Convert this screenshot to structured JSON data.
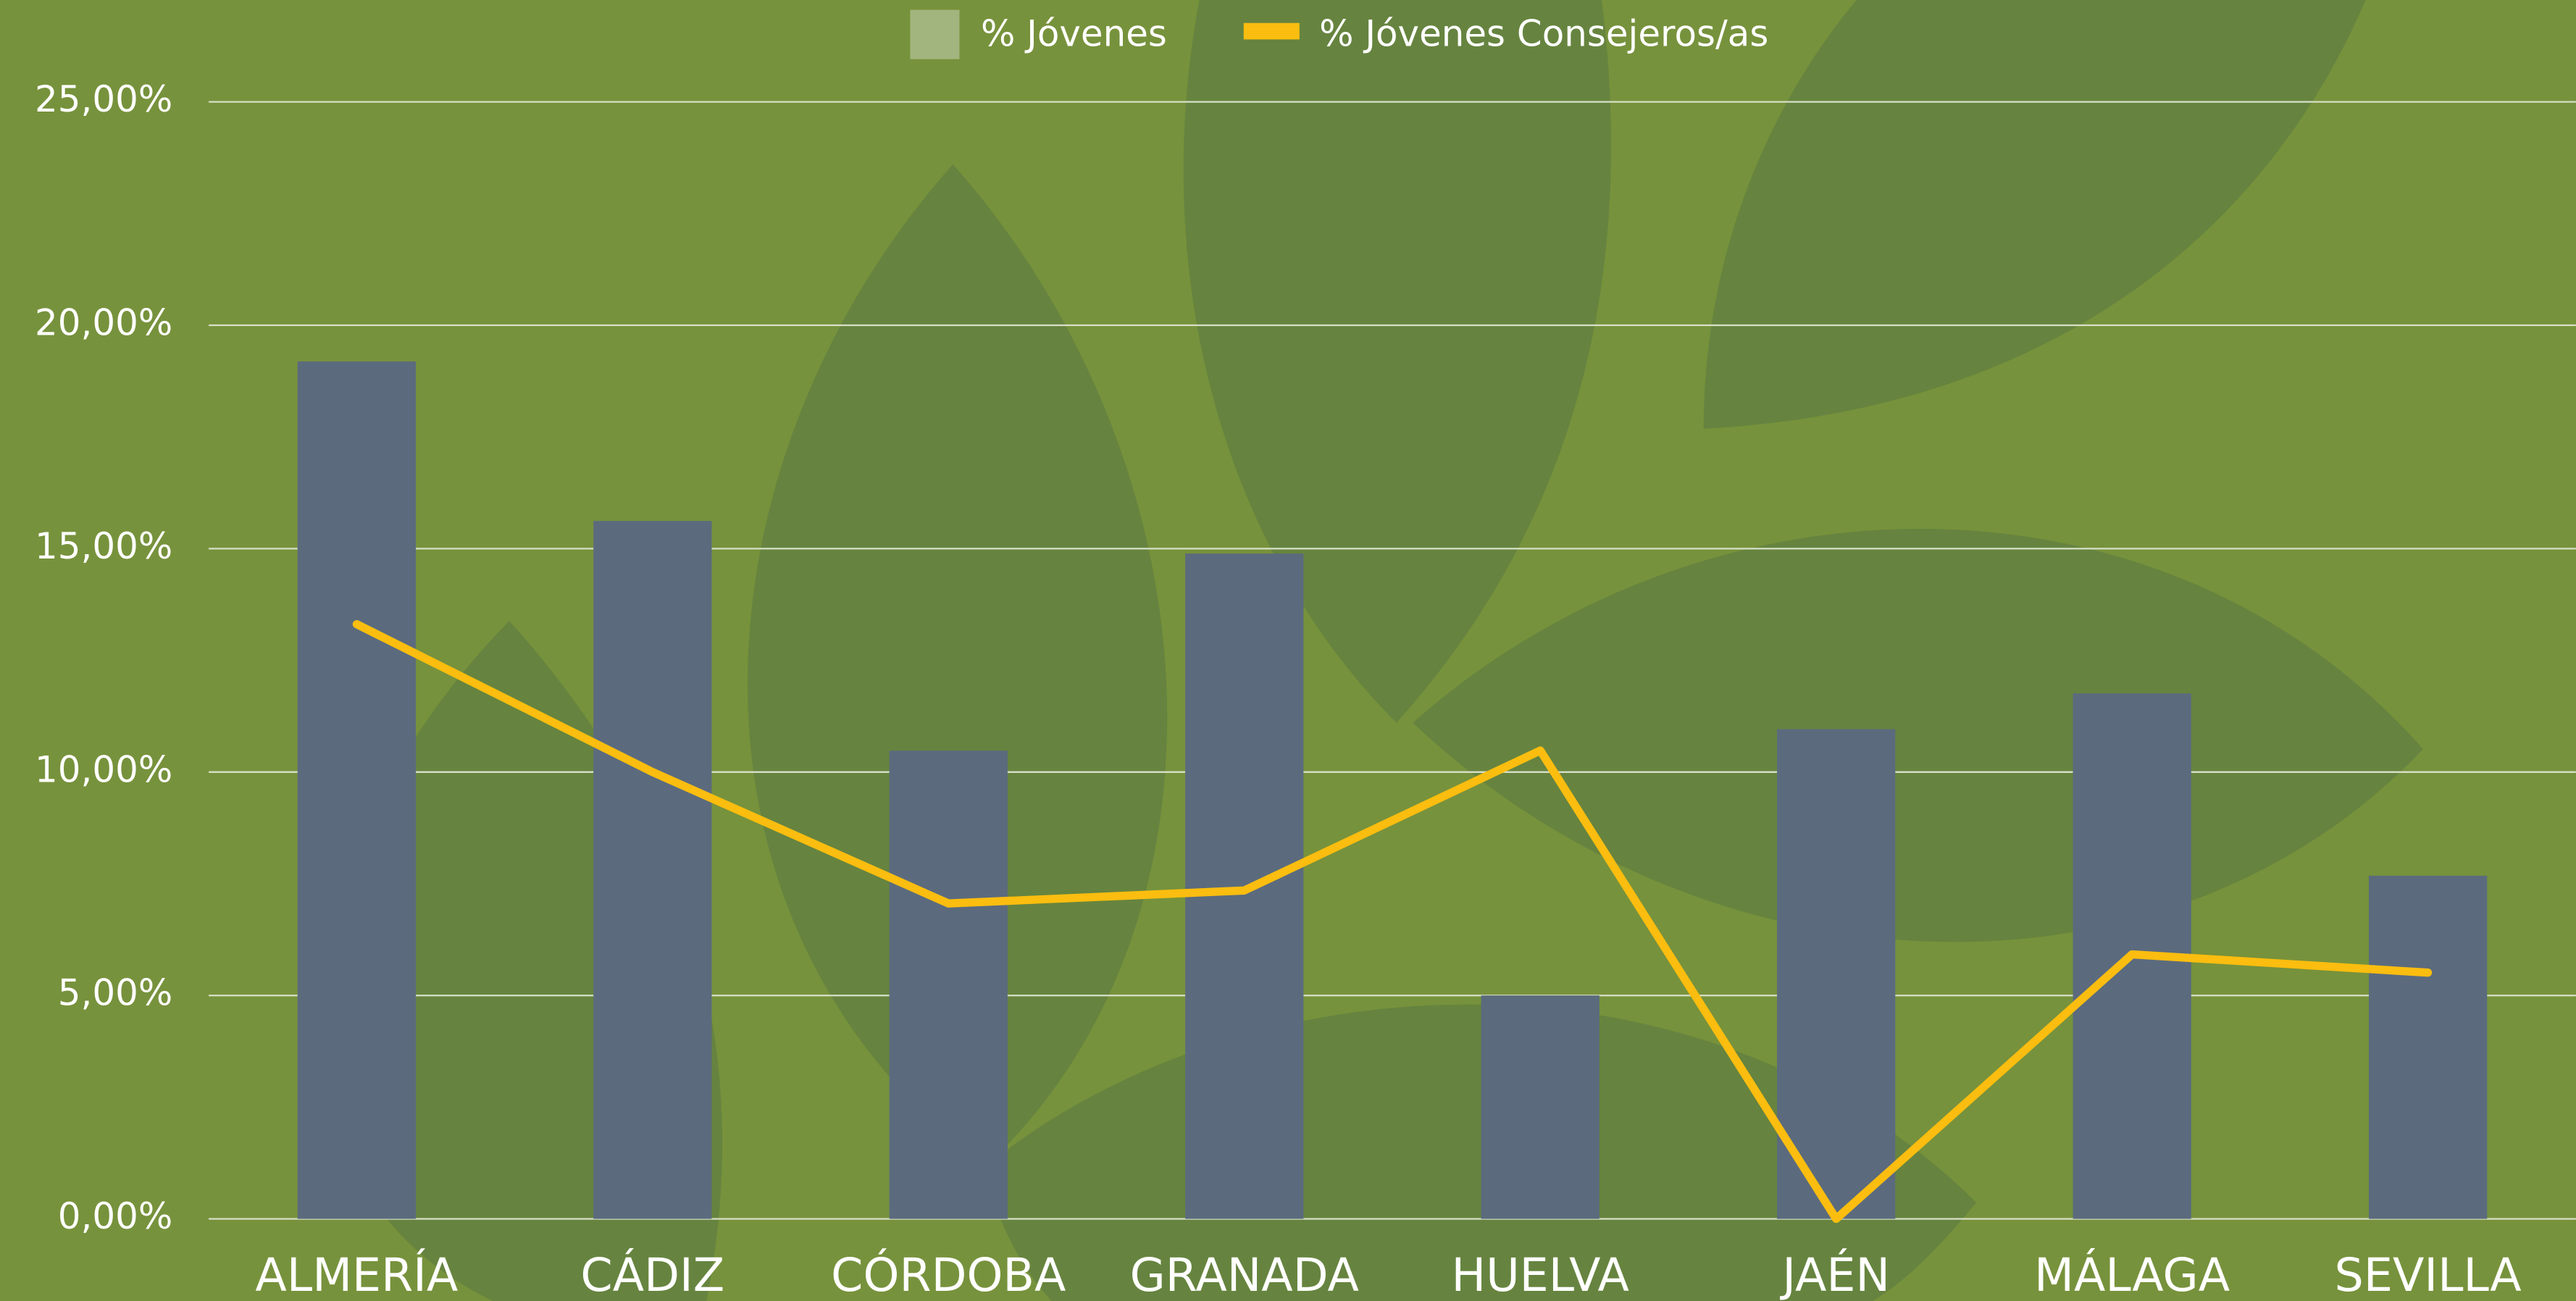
{
  "chart_data": {
    "type": "bar_line",
    "categories": [
      "ALMERÍA",
      "CÁDIZ",
      "CÓRDOBA",
      "GRANADA",
      "HUELVA",
      "JAÉN",
      "MÁLAGA",
      "SEVILLA"
    ],
    "series": [
      {
        "name": "% Jóvenes",
        "type": "bar",
        "color": "#5b6b7d",
        "legend_color": "#a3b57e",
        "values": [
          19.19,
          15.62,
          10.48,
          14.89,
          5.0,
          10.96,
          11.76,
          7.68
        ]
      },
      {
        "name": "% Jóvenes Consejeros/as",
        "type": "line",
        "color": "#fbbd0f",
        "legend_color": "#fbbd0f",
        "values": [
          13.31,
          10.0,
          7.06,
          7.35,
          10.48,
          0,
          5.92,
          5.51
        ]
      }
    ],
    "ylim": [
      0,
      25
    ],
    "yticks": [
      {
        "value": 0,
        "label": "0,00%"
      },
      {
        "value": 5,
        "label": "5,00%"
      },
      {
        "value": 10,
        "label": "10,00%"
      },
      {
        "value": 15,
        "label": "15,00%"
      },
      {
        "value": 20,
        "label": "20,00%"
      },
      {
        "value": 25,
        "label": "25,00%"
      }
    ],
    "grid": true
  }
}
